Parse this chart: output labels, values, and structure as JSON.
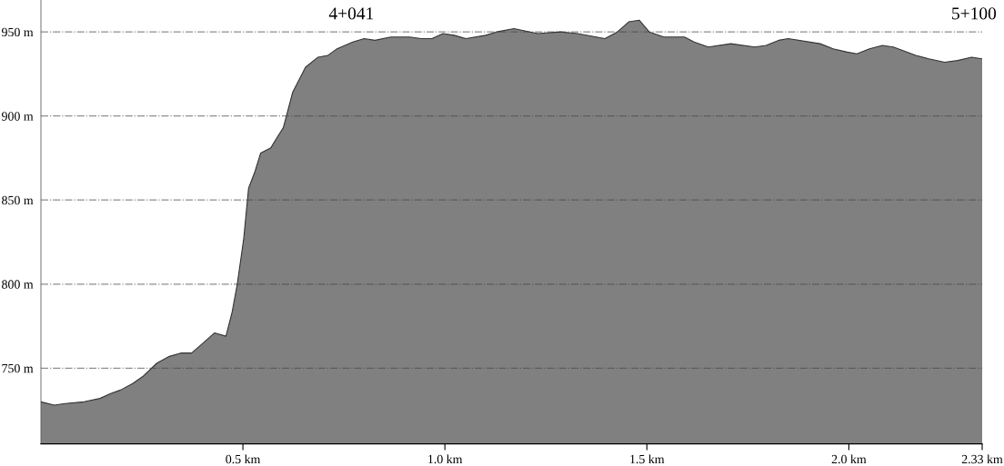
{
  "chart_data": {
    "type": "area",
    "x": [
      0,
      0.033,
      0.06,
      0.107,
      0.146,
      0.174,
      0.197,
      0.228,
      0.252,
      0.287,
      0.318,
      0.346,
      0.373,
      0.397,
      0.43,
      0.458,
      0.473,
      0.486,
      0.502,
      0.514,
      0.53,
      0.544,
      0.569,
      0.584,
      0.6,
      0.623,
      0.655,
      0.686,
      0.71,
      0.733,
      0.772,
      0.8,
      0.827,
      0.866,
      0.913,
      0.941,
      0.968,
      0.995,
      1.023,
      1.052,
      1.101,
      1.128,
      1.171,
      1.23,
      1.285,
      1.329,
      1.396,
      1.427,
      1.455,
      1.481,
      1.506,
      1.542,
      1.593,
      1.617,
      1.652,
      1.708,
      1.767,
      1.795,
      1.826,
      1.85,
      1.929,
      1.961,
      1.996,
      2.02,
      2.051,
      2.083,
      2.11,
      2.166,
      2.198,
      2.237,
      2.269,
      2.304,
      2.33
    ],
    "series": [
      {
        "color": "#808080",
        "values": [
          730,
          728,
          729,
          730,
          732,
          735,
          737,
          741,
          745,
          753,
          757,
          759,
          759,
          764,
          771,
          769,
          783,
          800,
          827,
          857,
          867,
          878,
          881,
          887,
          893,
          914,
          929,
          935,
          936,
          940,
          944,
          946,
          945,
          947,
          947,
          946,
          946,
          949,
          948,
          946,
          948,
          950,
          952,
          949,
          950,
          949,
          946,
          950,
          956,
          957,
          950,
          947,
          947,
          944,
          941,
          943,
          941,
          942,
          945,
          946,
          943,
          940,
          938,
          937,
          940,
          942,
          941,
          936,
          934,
          932,
          933,
          935,
          934
        ]
      }
    ],
    "xlim": [
      0,
      2.33
    ],
    "ylim": [
      705,
      969
    ],
    "xticks": [
      {
        "value": 0.5,
        "label": "0.5 km"
      },
      {
        "value": 1.0,
        "label": "1.0 km"
      },
      {
        "value": 1.5,
        "label": "1.5 km"
      },
      {
        "value": 2.0,
        "label": "2.0 km"
      },
      {
        "value": 2.33,
        "label": "2.33 km"
      }
    ],
    "yticks": [
      {
        "value": 750,
        "label": "750 m"
      },
      {
        "value": 800,
        "label": "800 m"
      },
      {
        "value": 850,
        "label": "850 m"
      },
      {
        "value": 900,
        "label": "900 m"
      },
      {
        "value": 950,
        "label": "950 m"
      }
    ],
    "grid": "y",
    "annotations": [
      "4+041",
      "5+100"
    ]
  }
}
